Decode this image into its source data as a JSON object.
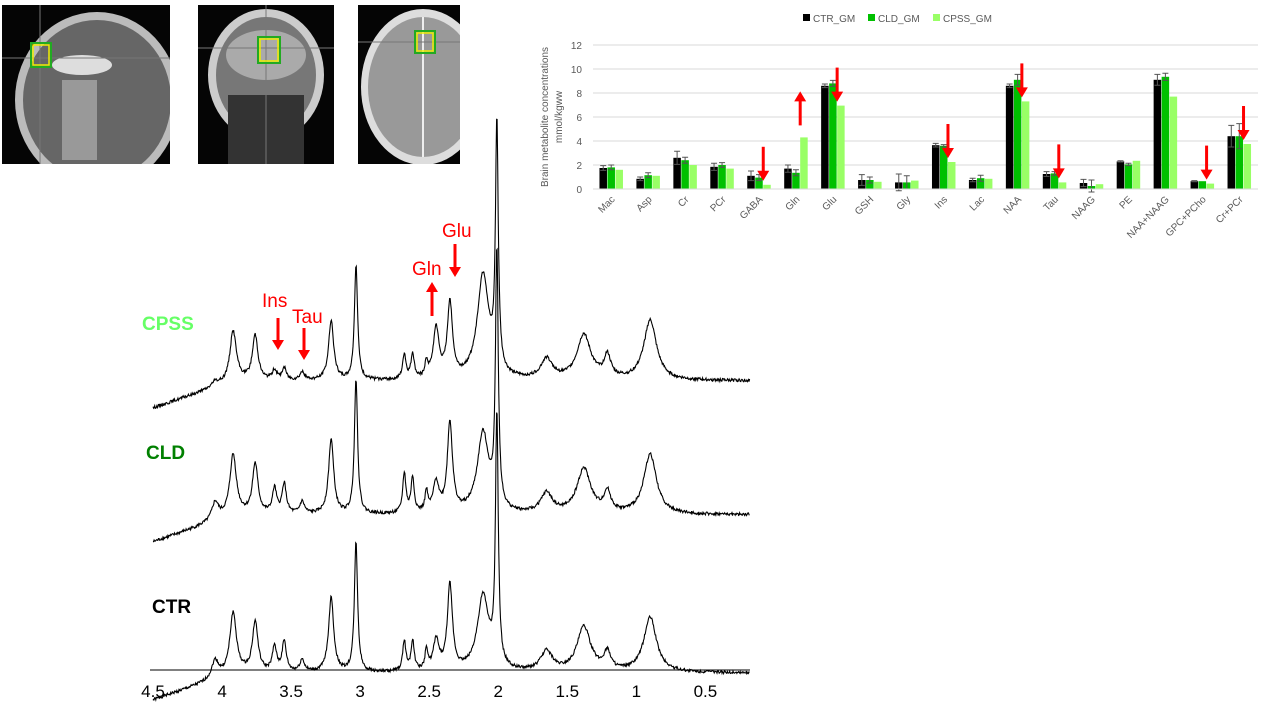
{
  "mri_images": [
    {
      "view": "sagittal"
    },
    {
      "view": "coronal"
    },
    {
      "view": "axial"
    }
  ],
  "colors": {
    "CTR": "#000000",
    "CLD": "#00c000",
    "CPSS": "#99ff66",
    "arrow": "#ff0000",
    "label_CPSS": "#66ff66",
    "label_CLD": "#008000",
    "label_CTR": "#000000"
  },
  "chart_data": [
    {
      "type": "bar",
      "ylabel": "Brain metabolite concentrations mmol/kgww",
      "ylim": [
        0,
        12
      ],
      "yticks": [
        "0",
        "2",
        "4",
        "6",
        "8",
        "10",
        "12"
      ],
      "grid": true,
      "legend_position": "top",
      "categories": [
        "Mac",
        "Asp",
        "Cr",
        "PCr",
        "GABA",
        "Gln",
        "Glu",
        "GSH",
        "Gly",
        "Ins",
        "Lac",
        "NAA",
        "Tau",
        "NAAG",
        "PE",
        "NAA+NAAG",
        "GPC+PCho",
        "Cr+PCr"
      ],
      "series": [
        {
          "name": "CTR_GM",
          "values": [
            1.75,
            0.85,
            2.6,
            1.85,
            1.1,
            1.7,
            8.6,
            0.75,
            0.55,
            3.65,
            0.75,
            8.6,
            1.25,
            0.5,
            2.3,
            9.1,
            0.65,
            4.4
          ],
          "errors": [
            0.2,
            0.15,
            0.55,
            0.3,
            0.4,
            0.3,
            0.15,
            0.45,
            0.7,
            0.15,
            0.15,
            0.15,
            0.2,
            0.3,
            0.05,
            0.45,
            0.05,
            0.9
          ]
        },
        {
          "name": "CLD_GM",
          "values": [
            1.8,
            1.15,
            2.4,
            2.0,
            0.95,
            1.35,
            8.8,
            0.75,
            0.55,
            3.6,
            0.9,
            9.1,
            1.3,
            0.25,
            2.05,
            9.35,
            0.65,
            4.4
          ],
          "errors": [
            0.2,
            0.2,
            0.25,
            0.2,
            0.25,
            0.25,
            0.25,
            0.25,
            0.55,
            0.1,
            0.25,
            0.45,
            0.15,
            0.5,
            0.1,
            0.3,
            0.0,
            1.05
          ]
        },
        {
          "name": "CPSS_GM",
          "values": [
            1.6,
            1.1,
            2.0,
            1.7,
            0.35,
            4.3,
            6.95,
            0.6,
            0.7,
            2.25,
            0.85,
            7.3,
            0.55,
            0.4,
            2.35,
            7.7,
            0.45,
            3.75
          ],
          "errors": []
        }
      ],
      "annotations": [
        {
          "category": "GABA",
          "direction": "down"
        },
        {
          "category": "Gln",
          "direction": "up"
        },
        {
          "category": "Glu",
          "direction": "down"
        },
        {
          "category": "Ins",
          "direction": "down"
        },
        {
          "category": "NAA",
          "direction": "down"
        },
        {
          "category": "Tau",
          "direction": "down"
        },
        {
          "category": "GPC+PCho",
          "direction": "down"
        },
        {
          "category": "Cr+PCr",
          "direction": "down"
        }
      ]
    },
    {
      "type": "line",
      "xlim": [
        4.5,
        0.2
      ],
      "xticks": [
        "4.5",
        "4",
        "3.5",
        "3",
        "2.5",
        "2",
        "1.5",
        "1",
        "0.5"
      ],
      "x_reversed": true,
      "series_labels": [
        "CPSS",
        "CLD",
        "CTR"
      ],
      "peaks_columns": [
        "ppm",
        "width",
        "CTR",
        "CLD",
        "CPSS"
      ],
      "peaks": [
        [
          0.9,
          0.055,
          0.55,
          0.6,
          0.6
        ],
        [
          1.21,
          0.03,
          0.18,
          0.2,
          0.22
        ],
        [
          1.38,
          0.06,
          0.45,
          0.45,
          0.45
        ],
        [
          1.65,
          0.05,
          0.2,
          0.2,
          0.2
        ],
        [
          2.01,
          0.012,
          2.5,
          2.55,
          2.45
        ],
        [
          2.11,
          0.05,
          0.75,
          0.8,
          1.05
        ],
        [
          2.35,
          0.022,
          0.85,
          0.9,
          0.75
        ],
        [
          2.45,
          0.025,
          0.3,
          0.3,
          0.5
        ],
        [
          2.52,
          0.012,
          0.2,
          0.2,
          0.15
        ],
        [
          2.62,
          0.014,
          0.3,
          0.35,
          0.25
        ],
        [
          2.68,
          0.014,
          0.3,
          0.4,
          0.25
        ],
        [
          3.03,
          0.014,
          1.3,
          1.35,
          1.15
        ],
        [
          3.21,
          0.022,
          0.75,
          0.75,
          0.6
        ],
        [
          3.42,
          0.02,
          0.12,
          0.12,
          0.08
        ],
        [
          3.55,
          0.018,
          0.3,
          0.3,
          0.12
        ],
        [
          3.62,
          0.018,
          0.25,
          0.25,
          0.1
        ],
        [
          3.76,
          0.024,
          0.5,
          0.5,
          0.45
        ],
        [
          3.92,
          0.028,
          0.6,
          0.6,
          0.5
        ],
        [
          4.05,
          0.03,
          0.18,
          0.18,
          0.05
        ]
      ],
      "annotations": [
        {
          "label": "Ins",
          "direction": "down"
        },
        {
          "label": "Tau",
          "direction": "down"
        },
        {
          "label": "Gln",
          "direction": "up"
        },
        {
          "label": "Glu",
          "direction": "down"
        }
      ]
    }
  ]
}
